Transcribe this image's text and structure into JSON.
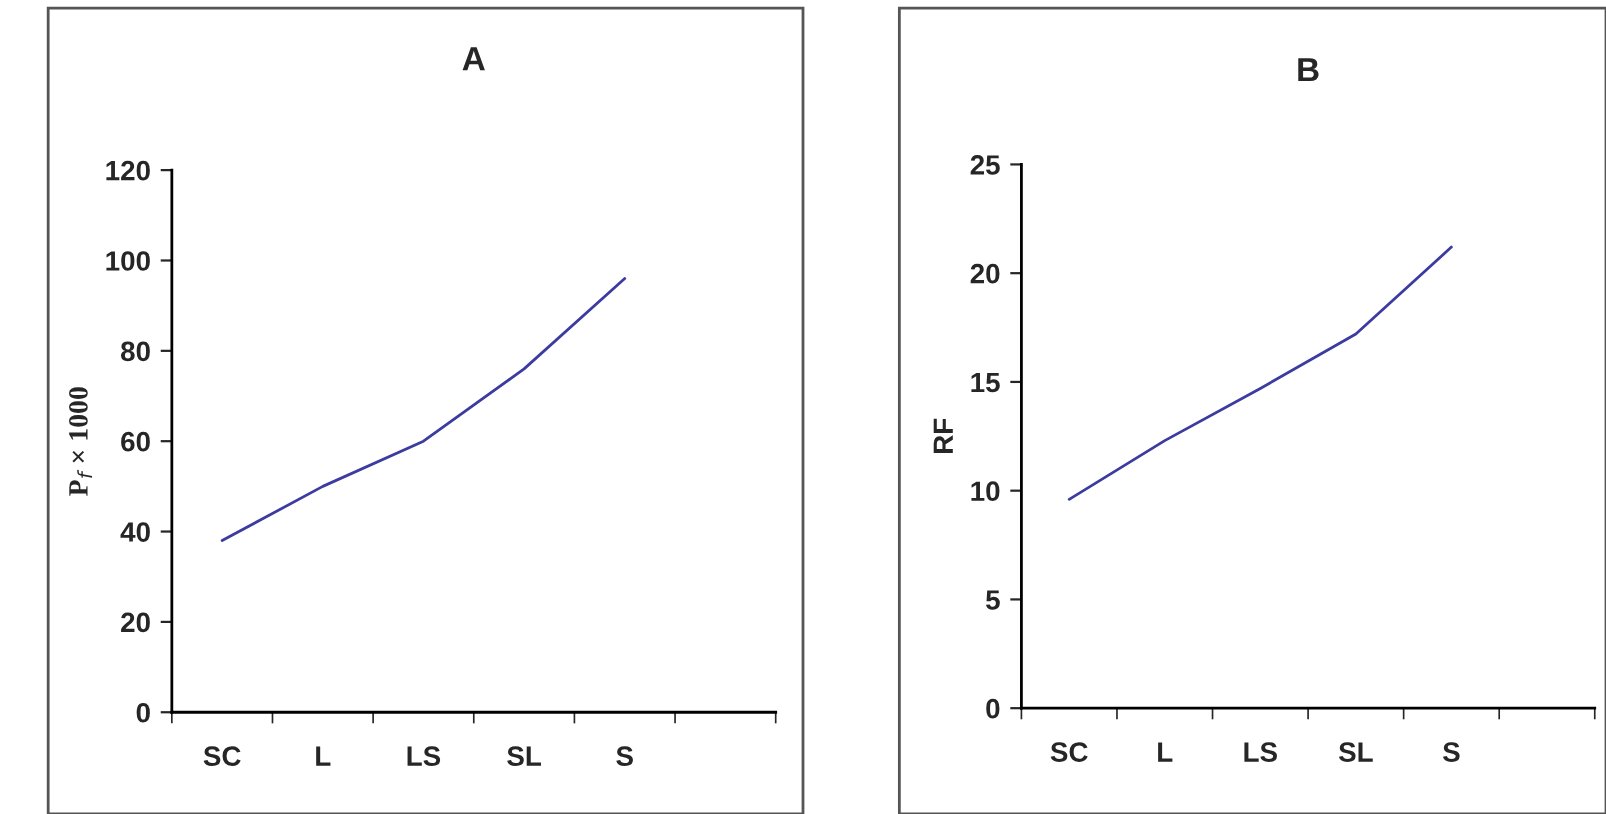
{
  "chart_data": [
    {
      "type": "line",
      "title": "A",
      "ylabel": "P$_{f}$ × 1000",
      "categories": [
        "SC",
        "L",
        "LS",
        "SL",
        "S",
        null
      ],
      "series": [
        {
          "color": "#3c3ca0",
          "values": [
            38,
            50,
            60,
            76,
            96,
            null
          ]
        }
      ],
      "ylim": [
        0,
        120
      ],
      "yticks": [
        0,
        20,
        40,
        60,
        80,
        100,
        120
      ],
      "grid": false,
      "legend": false,
      "marker": "none",
      "line_style": "solid"
    },
    {
      "type": "line",
      "title": "B",
      "ylabel": "RF",
      "categories": [
        "SC",
        "L",
        "LS",
        "SL",
        "S",
        null
      ],
      "series": [
        {
          "color": "#3c3ca0",
          "values": [
            9.6,
            12.3,
            14.7,
            17.2,
            21.2,
            null
          ]
        }
      ],
      "ylim": [
        0,
        25
      ],
      "yticks": [
        0,
        5,
        10,
        15,
        20,
        25
      ],
      "grid": false,
      "legend": false,
      "marker": "none",
      "line_style": "solid"
    }
  ]
}
